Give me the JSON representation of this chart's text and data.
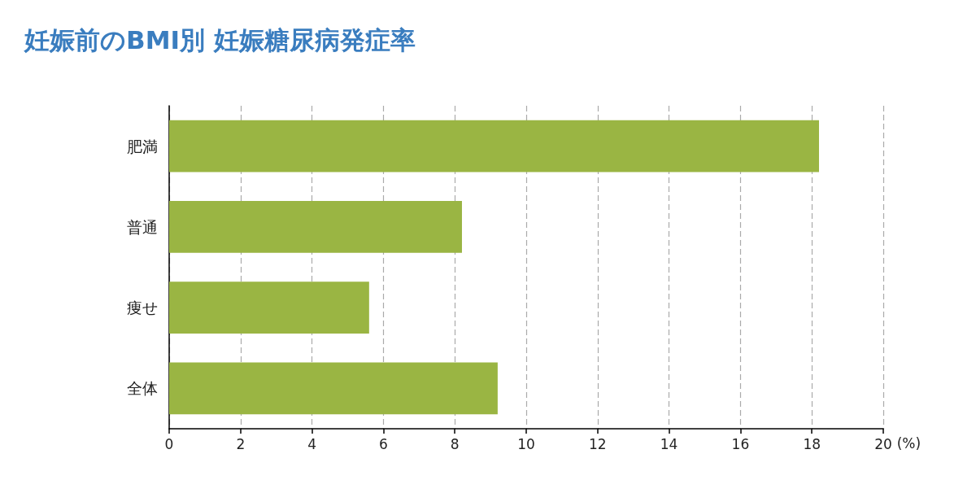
{
  "chart_data": {
    "type": "bar",
    "orientation": "horizontal",
    "title": "妊娠前のBMI別 妊娠糖尿病発症率",
    "xlabel": "(%)",
    "categories": [
      "肥満",
      "普通",
      "痩せ",
      "全体"
    ],
    "values": [
      18.2,
      8.2,
      5.6,
      9.2
    ],
    "color": "#9ab543",
    "xlim": [
      0,
      20
    ],
    "xticks": [
      0,
      2,
      4,
      6,
      8,
      10,
      12,
      14,
      16,
      18,
      20
    ],
    "grid": "x"
  }
}
